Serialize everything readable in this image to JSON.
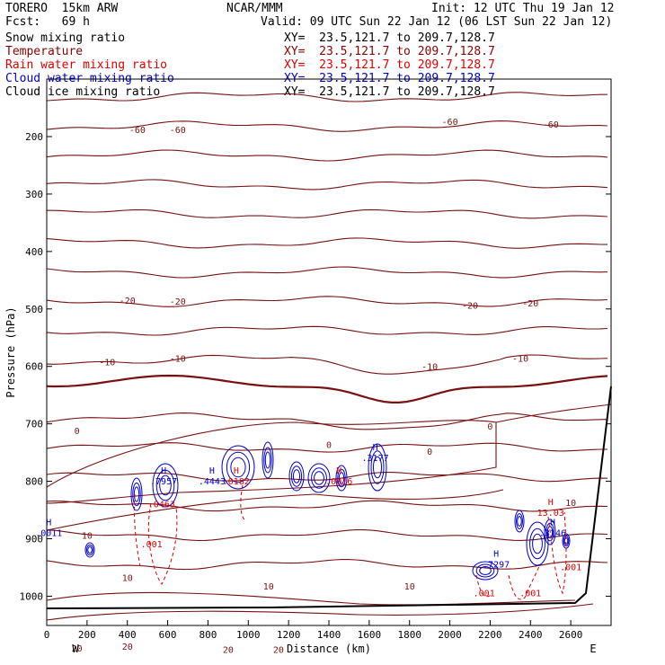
{
  "header": {
    "model": "TORERO  15km ARW",
    "org": "NCAR/MMM",
    "init": "Init: 12 UTC Thu 19 Jan 12",
    "fcst": "Fcst:   69 h",
    "valid": "Valid: 09 UTC Sun 22 Jan 12 (06 LST Sun 22 Jan 12)"
  },
  "legend": [
    {
      "name": "Snow mixing ratio",
      "xy": "XY=  23.5,121.7 to 209.7,128.7",
      "color": "#000000"
    },
    {
      "name": "Temperature",
      "xy": "XY=  23.5,121.7 to 209.7,128.7",
      "color": "#8b0000"
    },
    {
      "name": "Rain water mixing ratio",
      "xy": "XY=  23.5,121.7 to 209.7,128.7",
      "color": "#e00000"
    },
    {
      "name": "Cloud water mixing ratio",
      "xy": "XY=  23.5,121.7 to 209.7,128.7",
      "color": "#0000cc"
    },
    {
      "name": "Cloud ice mixing ratio",
      "xy": "XY=  23.5,121.7 to 209.7,128.7",
      "color": "#000000"
    }
  ],
  "chart_data": {
    "type": "contour cross-section",
    "xlabel": "Distance (km)",
    "ylabel": "Pressure (hPa)",
    "xlim": [
      0,
      2800
    ],
    "ylim": [
      1050,
      100
    ],
    "x_ticks": [
      0,
      200,
      400,
      600,
      800,
      1000,
      1200,
      1400,
      1600,
      1800,
      2000,
      2200,
      2400,
      2600
    ],
    "y_ticks": [
      200,
      300,
      400,
      500,
      600,
      700,
      800,
      900,
      1000
    ],
    "end_labels": {
      "left": "W",
      "right": "E"
    },
    "temperature_contours": [
      {
        "label": "-60",
        "label_positions": [
          [
            450,
            1.06
          ],
          [
            650,
            1.06
          ],
          [
            2000,
            0.92
          ],
          [
            2500,
            0.97
          ]
        ]
      },
      {
        "label": "-20",
        "label_positions": [
          [
            400,
            4.03
          ],
          [
            650,
            4.05
          ],
          [
            2100,
            4.12
          ],
          [
            2400,
            4.08
          ]
        ]
      },
      {
        "label": "-10",
        "label_positions": [
          [
            300,
            5.1
          ],
          [
            650,
            5.04
          ],
          [
            1900,
            5.18
          ],
          [
            2350,
            5.04
          ]
        ]
      },
      {
        "label": "0",
        "label_positions": [
          [
            150,
            6.3
          ],
          [
            1400,
            6.54
          ],
          [
            1900,
            6.66
          ],
          [
            2200,
            6.22
          ]
        ]
      },
      {
        "label": "10",
        "label_positions": [
          [
            200,
            8.12
          ],
          [
            400,
            8.85
          ],
          [
            1100,
            9.0
          ],
          [
            1800,
            9.0
          ],
          [
            2600,
            7.55
          ]
        ]
      },
      {
        "label": "20",
        "label_positions": [
          [
            150,
            10.08
          ],
          [
            400,
            10.05
          ],
          [
            900,
            10.1
          ],
          [
            1150,
            10.1
          ]
        ]
      }
    ],
    "maxima_labels": [
      {
        "series": "Cloud water mixing ratio",
        "label": "H",
        "value": ".0011",
        "x": 10,
        "p": 895
      },
      {
        "series": "Cloud water mixing ratio",
        "label": "H",
        "value": ".7957",
        "x": 580,
        "p": 805
      },
      {
        "series": "Cloud water mixing ratio",
        "label": "H",
        "value": ".4443",
        "x": 820,
        "p": 805
      },
      {
        "series": "Cloud water mixing ratio",
        "label": "H",
        "value": ".3177",
        "x": 1630,
        "p": 765
      },
      {
        "series": "Cloud water mixing ratio",
        "label": "H",
        "value": ".7297",
        "x": 2230,
        "p": 950
      },
      {
        "series": "Cloud water mixing ratio",
        "label": "H",
        "value": ".3146",
        "x": 2510,
        "p": 895
      },
      {
        "series": "Rain water mixing ratio",
        "label": "",
        "value": ".0463",
        "x": 570,
        "p": 845
      },
      {
        "series": "Rain water mixing ratio",
        "label": "H",
        "value": ".0182",
        "x": 940,
        "p": 805
      },
      {
        "series": "Rain water mixing ratio",
        "label": "H",
        "value": ".0016",
        "x": 1450,
        "p": 805
      },
      {
        "series": "Rain water mixing ratio",
        "label": "H",
        "value": "13.03",
        "x": 2500,
        "p": 860
      },
      {
        "series": "Rain water mixing ratio",
        "label": "",
        "value": ".001",
        "x": 520,
        "p": 915
      },
      {
        "series": "Rain water mixing ratio",
        "label": "",
        "value": ".001",
        "x": 2170,
        "p": 1000
      },
      {
        "series": "Rain water mixing ratio",
        "label": "",
        "value": ".001",
        "x": 2400,
        "p": 1000
      },
      {
        "series": "Rain water mixing ratio",
        "label": "",
        "value": ".001",
        "x": 2600,
        "p": 955
      }
    ]
  }
}
